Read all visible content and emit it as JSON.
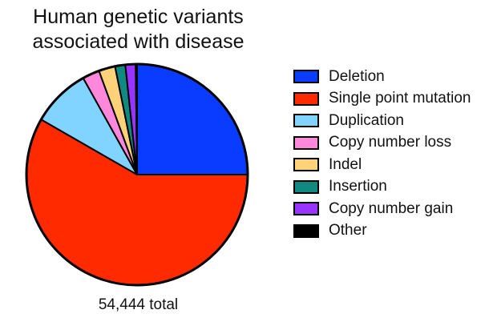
{
  "chart_data": {
    "type": "pie",
    "title": "Human genetic variants associated with disease",
    "subtitle": "54,444 total",
    "categories": [
      "Deletion",
      "Single point mutation",
      "Duplication",
      "Copy number loss",
      "Indel",
      "Insertion",
      "Copy number gain",
      "Other"
    ],
    "values": [
      25.0,
      58.3,
      8.6,
      2.5,
      2.4,
      1.5,
      1.5,
      0.2
    ],
    "colors": [
      "#0a3cff",
      "#ff2a00",
      "#80d4ff",
      "#ff88dd",
      "#ffd27a",
      "#108a80",
      "#9933ff",
      "#000000"
    ],
    "legend": "right",
    "start": "top, clockwise"
  }
}
